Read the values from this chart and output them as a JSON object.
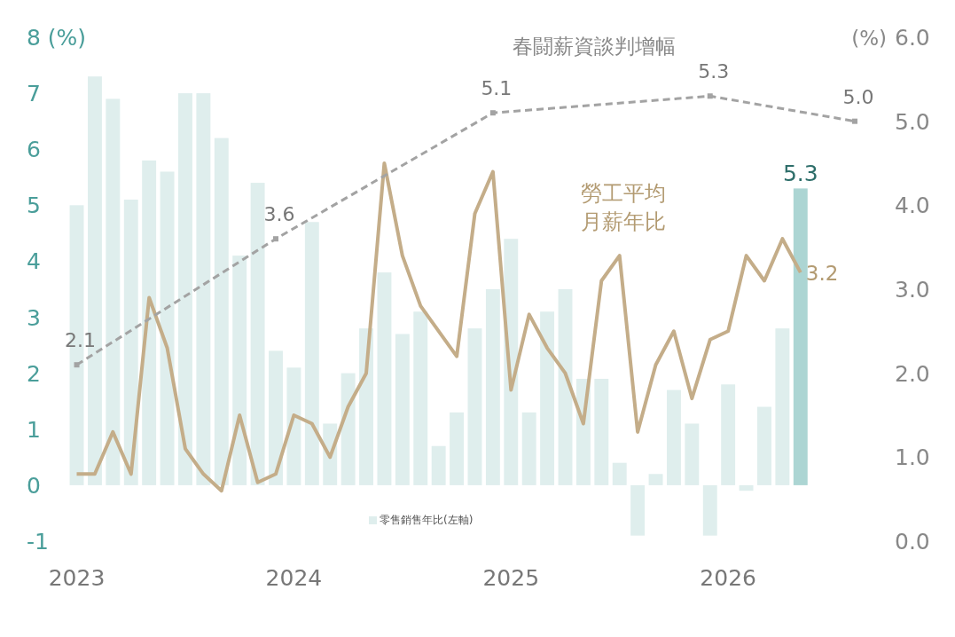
{
  "chart_data": {
    "type": "bar",
    "x": [
      "2023-01",
      "2023-02",
      "2023-03",
      "2023-04",
      "2023-05",
      "2023-06",
      "2023-07",
      "2023-08",
      "2023-09",
      "2023-10",
      "2023-11",
      "2023-12",
      "2024-01",
      "2024-02",
      "2024-03",
      "2024-04",
      "2024-05",
      "2024-06",
      "2024-07",
      "2024-08",
      "2024-09",
      "2024-10",
      "2024-11",
      "2024-12",
      "2025-01",
      "2025-02",
      "2025-03",
      "2025-04",
      "2025-05",
      "2025-06",
      "2025-07",
      "2025-08",
      "2025-09",
      "2025-10",
      "2025-11",
      "2025-12",
      "2026-01",
      "2026-02",
      "2026-03",
      "2026-04",
      "2026-05"
    ],
    "xlim": [
      "2022-12-16",
      "2026-08-01"
    ],
    "xticks": [
      {
        "value": "2023-01",
        "label": "2023"
      },
      {
        "value": "2024-01",
        "label": "2024"
      },
      {
        "value": "2025-01",
        "label": "2025"
      },
      {
        "value": "2026-01",
        "label": "2026"
      }
    ],
    "ylim": [
      -1,
      8
    ],
    "yticks": [
      -1,
      0,
      1,
      2,
      3,
      4,
      5,
      6,
      7,
      {
        "value": 8,
        "label": "8 (%)"
      }
    ],
    "y2lim": [
      0,
      6
    ],
    "y2ticks": [
      {
        "value": 0,
        "label": "0.0"
      },
      {
        "value": 1,
        "label": "1.0"
      },
      {
        "value": 2,
        "label": "2.0"
      },
      {
        "value": 3,
        "label": "3.0"
      },
      {
        "value": 4,
        "label": "4.0"
      },
      {
        "value": 5,
        "label": "5.0"
      },
      {
        "value": 6,
        "label": "6.0"
      }
    ],
    "y2label": "(%)",
    "legend": "bottom",
    "series": [
      {
        "name": "零售銷售年比(左軸)",
        "color": "#dfeeed",
        "colors": [
          "#dfeeed",
          "#dfeeed",
          "#dfeeed",
          "#dfeeed",
          "#dfeeed",
          "#dfeeed",
          "#dfeeed",
          "#dfeeed",
          "#dfeeed",
          "#dfeeed",
          "#dfeeed",
          "#dfeeed",
          "#dfeeed",
          "#dfeeed",
          "#dfeeed",
          "#dfeeed",
          "#dfeeed",
          "#dfeeed",
          "#dfeeed",
          "#dfeeed",
          "#dfeeed",
          "#dfeeed",
          "#dfeeed",
          "#dfeeed",
          "#dfeeed",
          "#dfeeed",
          "#dfeeed",
          "#dfeeed",
          "#dfeeed",
          "#dfeeed",
          "#dfeeed",
          "#dfeeed",
          "#dfeeed",
          "#dfeeed",
          "#dfeeed",
          "#dfeeed",
          "#dfeeed",
          "#dfeeed",
          "#dfeeed",
          "#dfeeed",
          "#acd5d3"
        ],
        "values": [
          5.0,
          7.3,
          6.9,
          5.1,
          5.8,
          5.6,
          7.0,
          7.0,
          6.2,
          4.1,
          5.4,
          2.4,
          2.1,
          4.7,
          1.1,
          2.0,
          2.8,
          3.8,
          2.7,
          3.1,
          0.7,
          1.3,
          2.8,
          3.5,
          4.4,
          1.3,
          3.1,
          3.5,
          1.9,
          1.9,
          0.4,
          -0.9,
          0.2,
          1.7,
          1.1,
          -0.9,
          1.8,
          -0.1,
          1.4,
          2.8,
          5.3
        ],
        "value_labels": [
          null,
          null,
          null,
          null,
          null,
          null,
          null,
          null,
          null,
          null,
          null,
          null,
          null,
          null,
          null,
          null,
          null,
          null,
          null,
          null,
          null,
          null,
          null,
          null,
          null,
          null,
          null,
          null,
          null,
          null,
          null,
          null,
          null,
          null,
          null,
          null,
          null,
          null,
          null,
          null,
          "5.3"
        ]
      },
      {
        "name": "勞工平均月薪年比",
        "type": "line",
        "axis": "y2",
        "color": "#c4ad89",
        "line_style": "solid",
        "marker": "none",
        "x": [
          "2023-01",
          "2023-02",
          "2023-03",
          "2023-04",
          "2023-05",
          "2023-06",
          "2023-07",
          "2023-08",
          "2023-09",
          "2023-10",
          "2023-11",
          "2023-12",
          "2024-01",
          "2024-02",
          "2024-03",
          "2024-04",
          "2024-05",
          "2024-06",
          "2024-07",
          "2024-08",
          "2024-10",
          "2024-11",
          "2024-12",
          "2025-01",
          "2025-02",
          "2025-03",
          "2025-04",
          "2025-05",
          "2025-06",
          "2025-07",
          "2025-08",
          "2025-09",
          "2025-10",
          "2025-11",
          "2025-12",
          "2026-01",
          "2026-02",
          "2026-03",
          "2026-04",
          "2026-05"
        ],
        "values": [
          0.8,
          0.8,
          1.3,
          0.8,
          2.9,
          2.3,
          1.1,
          0.8,
          0.6,
          1.5,
          0.7,
          0.8,
          1.5,
          1.4,
          1.0,
          1.6,
          2.0,
          4.5,
          3.4,
          2.8,
          2.2,
          3.9,
          4.4,
          1.8,
          2.7,
          2.3,
          2.0,
          1.4,
          3.1,
          3.4,
          1.3,
          2.1,
          2.5,
          1.7,
          2.4,
          2.5,
          3.4,
          3.1,
          3.6,
          3.2
        ],
        "value_labels": [
          null,
          null,
          null,
          null,
          null,
          null,
          null,
          null,
          null,
          null,
          null,
          null,
          null,
          null,
          null,
          null,
          null,
          null,
          null,
          null,
          null,
          null,
          null,
          null,
          null,
          null,
          null,
          null,
          null,
          null,
          null,
          null,
          null,
          null,
          null,
          null,
          null,
          null,
          null,
          "3.2"
        ]
      },
      {
        "name": "春闘薪資談判增幅",
        "type": "line",
        "axis": "y2",
        "color": "#a3a3a3",
        "line_style": "dashed",
        "marker": "square",
        "x": [
          "2023-01",
          "2023-12",
          "2024-12",
          "2025-12",
          "2026-08"
        ],
        "values": [
          2.1,
          3.6,
          5.1,
          5.3,
          5.0
        ],
        "value_labels": [
          "2.1",
          "3.6",
          "5.1",
          "5.3",
          "5.0"
        ]
      }
    ]
  }
}
